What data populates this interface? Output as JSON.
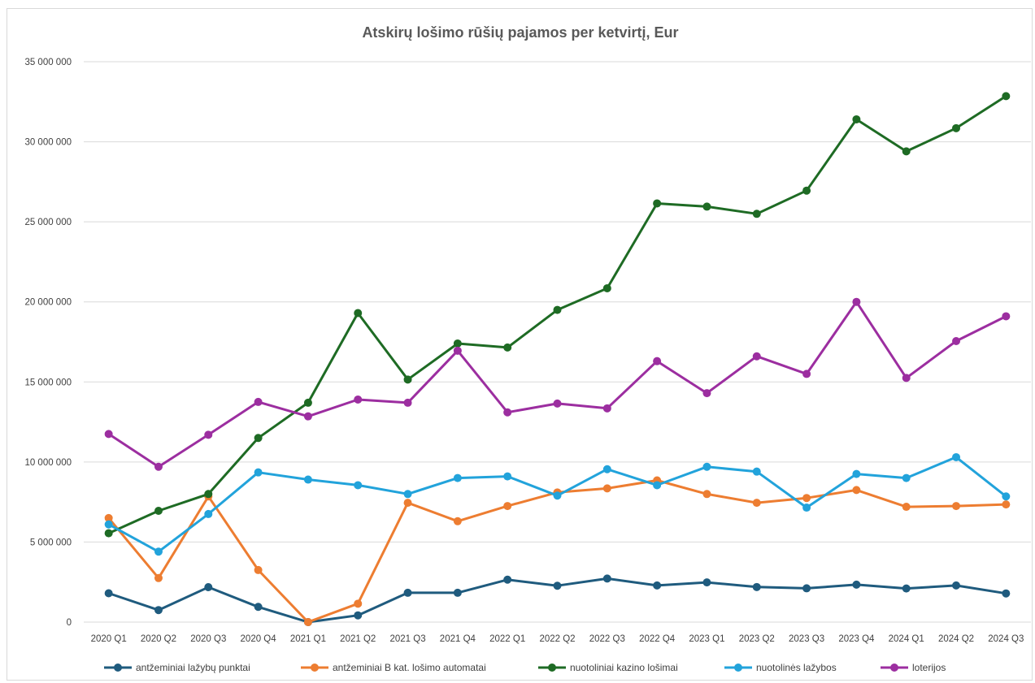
{
  "chart_data": {
    "type": "line",
    "title": "Atskirų lošimo rūšių pajamos per ketvirtį, Eur",
    "xlabel": "",
    "ylabel": "",
    "ylim": [
      0,
      35000000
    ],
    "y_ticks": [
      {
        "value": 0,
        "label": "0"
      },
      {
        "value": 5000000,
        "label": "5 000 000"
      },
      {
        "value": 10000000,
        "label": "10 000 000"
      },
      {
        "value": 15000000,
        "label": "15 000 000"
      },
      {
        "value": 20000000,
        "label": "20 000 000"
      },
      {
        "value": 25000000,
        "label": "25 000 000"
      },
      {
        "value": 30000000,
        "label": "30 000 000"
      },
      {
        "value": 35000000,
        "label": "35 000 000"
      }
    ],
    "grid": true,
    "legend_position": "bottom",
    "categories": [
      "2020 Q1",
      "2020 Q2",
      "2020 Q3",
      "2020 Q4",
      "2021 Q1",
      "2021 Q2",
      "2021 Q3",
      "2021 Q4",
      "2022 Q1",
      "2022 Q2",
      "2022 Q3",
      "2022 Q4",
      "2023 Q1",
      "2023 Q2",
      "2023 Q3",
      "2023 Q4",
      "2024 Q1",
      "2024 Q2",
      "2024 Q3"
    ],
    "series": [
      {
        "name": "antžeminiai lažybų punktai",
        "color": "#1f5b7e",
        "values": [
          1800000,
          750000,
          2180000,
          950000,
          0,
          420000,
          1830000,
          1830000,
          2650000,
          2270000,
          2720000,
          2290000,
          2480000,
          2190000,
          2110000,
          2340000,
          2100000,
          2290000,
          1790000
        ]
      },
      {
        "name": "antžeminiai B kat. lošimo automatai",
        "color": "#ed7d31",
        "values": [
          6500000,
          2750000,
          7850000,
          3250000,
          0,
          1150000,
          7450000,
          6300000,
          7250000,
          8100000,
          8350000,
          8850000,
          8000000,
          7450000,
          7750000,
          8250000,
          7200000,
          7250000,
          7350000
        ]
      },
      {
        "name": "nuotoliniai kazino lošimai",
        "color": "#1e6b24",
        "values": [
          5550000,
          6950000,
          8000000,
          11500000,
          13700000,
          19300000,
          15150000,
          17400000,
          17150000,
          19500000,
          20850000,
          26150000,
          25950000,
          25500000,
          26950000,
          31400000,
          29400000,
          30850000,
          32850000
        ]
      },
      {
        "name": "nuotolinės lažybos",
        "color": "#22a3db",
        "values": [
          6100000,
          4400000,
          6750000,
          9350000,
          8900000,
          8550000,
          8000000,
          9000000,
          9100000,
          7900000,
          9550000,
          8550000,
          9700000,
          9400000,
          7150000,
          9250000,
          9000000,
          10300000,
          7850000
        ]
      },
      {
        "name": "loterijos",
        "color": "#9c2ea0",
        "values": [
          11750000,
          9700000,
          11700000,
          13750000,
          12850000,
          13900000,
          13700000,
          16950000,
          13100000,
          13650000,
          13350000,
          16300000,
          14300000,
          16600000,
          15500000,
          20000000,
          15250000,
          17550000,
          19100000
        ]
      }
    ]
  }
}
